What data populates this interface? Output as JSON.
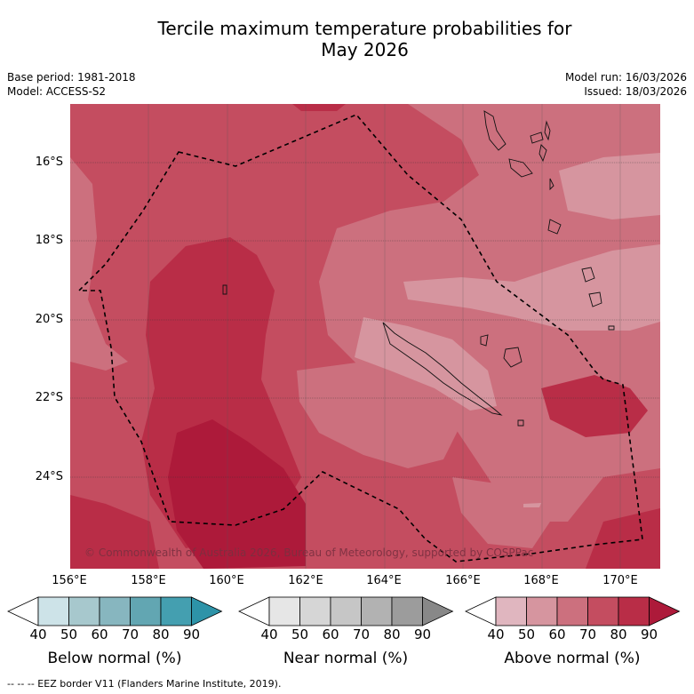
{
  "title_line1": "Tercile maximum temperature probabilities for",
  "title_line2": "May 2026",
  "base_period": "Base period: 1981-2018",
  "model": "Model: ACCESS-S2",
  "model_run": "Model run: 16/03/2026",
  "issued": "Issued: 18/03/2026",
  "lat_labels": [
    "16°S",
    "18°S",
    "20°S",
    "22°S",
    "24°S"
  ],
  "lon_labels": [
    "156°E",
    "158°E",
    "160°E",
    "162°E",
    "164°E",
    "166°E",
    "168°E",
    "170°E"
  ],
  "copyright": "© Commonwealth of Australia 2026, Bureau of Meteorology, supported by COSPPac",
  "colorbars": [
    {
      "label": "Below normal (%)",
      "ticks": [
        "40",
        "50",
        "60",
        "70",
        "80",
        "90"
      ],
      "colors": [
        "#ffffff",
        "#cde3e8",
        "#a7c8cd",
        "#87b6bf",
        "#62a6b2",
        "#449fb0",
        "#2d93a8"
      ]
    },
    {
      "label": "Near normal (%)",
      "ticks": [
        "40",
        "50",
        "60",
        "70",
        "80",
        "90"
      ],
      "colors": [
        "#ffffff",
        "#e6e6e6",
        "#d6d6d6",
        "#c6c6c6",
        "#b2b2b2",
        "#9c9c9c",
        "#888888"
      ]
    },
    {
      "label": "Above normal (%)",
      "ticks": [
        "40",
        "50",
        "60",
        "70",
        "80",
        "90"
      ],
      "colors": [
        "#ffffff",
        "#e0b6bf",
        "#d6959f",
        "#cc707e",
        "#c44d60",
        "#b92d47",
        "#ad1a3a"
      ]
    }
  ],
  "footnote": "--  --  -- EEZ border V11 (Flanders Marine Institute, 2019)."
}
